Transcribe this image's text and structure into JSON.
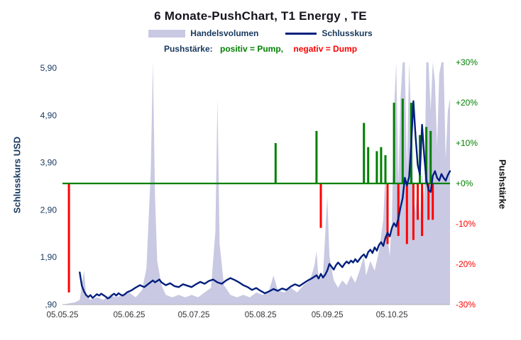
{
  "legend": {
    "push_prefix": "Pushstärke:",
    "pump_label": "positiv = Pump,",
    "dump_label": "negativ = Dump"
  },
  "colors": {
    "volume": "#c9c9e3",
    "close": "#001f7e",
    "pump": "#008000",
    "dump": "#ff0000",
    "axis_text": "#17375e",
    "x_tick_text": "#333333",
    "x_axis_line": "#b0b0b0"
  },
  "chart_data": {
    "type": "combo",
    "title": "6 Monate-PushChart, T1 Energy , TE",
    "x_axis": {
      "tick_labels": [
        "05.05.25",
        "05.06.25",
        "05.07.25",
        "05.08.25",
        "05.09.25",
        "05.10.25"
      ],
      "tick_days": [
        0,
        31,
        61,
        92,
        123,
        153
      ],
      "range_days": [
        0,
        180
      ]
    },
    "left_axis": {
      "title": "Schlusskurs USD",
      "range": [
        0.9,
        6.02
      ],
      "tick_values": [
        5.9,
        4.9,
        3.9,
        2.9,
        1.9,
        0.9
      ],
      "tick_labels": [
        "5,90",
        "4,90",
        "3,90",
        "2,90",
        "1,90",
        ",90"
      ]
    },
    "right_axis": {
      "title": "Pushstärke",
      "range": [
        -30,
        30
      ],
      "tick_values": [
        30,
        20,
        10,
        0,
        -10,
        -20,
        -30
      ],
      "tick_labels": [
        "+30%",
        "+20%",
        "+10%",
        "+0%",
        "-10%",
        "-20%",
        "-30%"
      ]
    },
    "zero_line": {
      "axis": "right",
      "value": 0
    },
    "series": [
      {
        "name": "Handelsvolumen",
        "type": "area",
        "axis": "hidden",
        "unit": "fraction_of_plot_height",
        "points": [
          [
            0,
            0
          ],
          [
            6,
            0.01
          ],
          [
            8,
            0.02
          ],
          [
            10,
            0.14
          ],
          [
            11,
            0.04
          ],
          [
            13,
            0.02
          ],
          [
            16,
            0.03
          ],
          [
            19,
            0.02
          ],
          [
            22,
            0.04
          ],
          [
            25,
            0.03
          ],
          [
            28,
            0.04
          ],
          [
            31,
            0.05
          ],
          [
            34,
            0.03
          ],
          [
            37,
            0.06
          ],
          [
            39,
            0.15
          ],
          [
            41,
            0.55
          ],
          [
            42,
            1.0
          ],
          [
            43,
            0.45
          ],
          [
            44,
            0.18
          ],
          [
            46,
            0.08
          ],
          [
            48,
            0.04
          ],
          [
            51,
            0.03
          ],
          [
            54,
            0.04
          ],
          [
            57,
            0.03
          ],
          [
            60,
            0.04
          ],
          [
            63,
            0.03
          ],
          [
            66,
            0.05
          ],
          [
            69,
            0.07
          ],
          [
            71,
            0.3
          ],
          [
            72,
            0.85
          ],
          [
            73,
            0.25
          ],
          [
            75,
            0.08
          ],
          [
            78,
            0.04
          ],
          [
            81,
            0.03
          ],
          [
            84,
            0.04
          ],
          [
            87,
            0.03
          ],
          [
            90,
            0.05
          ],
          [
            93,
            0.04
          ],
          [
            96,
            0.06
          ],
          [
            98,
            0.12
          ],
          [
            100,
            0.06
          ],
          [
            103,
            0.05
          ],
          [
            106,
            0.07
          ],
          [
            109,
            0.05
          ],
          [
            112,
            0.08
          ],
          [
            115,
            0.1
          ],
          [
            117,
            0.16
          ],
          [
            118,
            0.22
          ],
          [
            119,
            0.1
          ],
          [
            121,
            0.12
          ],
          [
            123,
            0.45
          ],
          [
            124,
            0.2
          ],
          [
            126,
            0.1
          ],
          [
            128,
            0.07
          ],
          [
            130,
            0.1
          ],
          [
            132,
            0.08
          ],
          [
            134,
            0.12
          ],
          [
            136,
            0.09
          ],
          [
            138,
            0.14
          ],
          [
            140,
            0.2
          ],
          [
            141,
            0.12
          ],
          [
            143,
            0.18
          ],
          [
            145,
            0.14
          ],
          [
            147,
            0.22
          ],
          [
            149,
            0.35
          ],
          [
            150,
            0.55
          ],
          [
            151,
            0.28
          ],
          [
            152,
            0.2
          ],
          [
            153,
            0.35
          ],
          [
            154,
            0.8
          ],
          [
            155,
            1.0
          ],
          [
            156,
            0.5
          ],
          [
            157,
            0.85
          ],
          [
            158,
            1.0
          ],
          [
            159,
            1.0
          ],
          [
            160,
            0.55
          ],
          [
            161,
            1.0
          ],
          [
            162,
            0.75
          ],
          [
            163,
            0.45
          ],
          [
            164,
            0.38
          ],
          [
            165,
            0.52
          ],
          [
            166,
            0.35
          ],
          [
            167,
            0.55
          ],
          [
            168,
            0.42
          ],
          [
            169,
            1.0
          ],
          [
            170,
            1.0
          ],
          [
            171,
            0.8
          ],
          [
            172,
            1.0
          ],
          [
            173,
            0.92
          ],
          [
            174,
            0.65
          ],
          [
            175,
            0.95
          ],
          [
            176,
            1.0
          ],
          [
            177,
            1.0
          ],
          [
            178,
            0.6
          ],
          [
            179,
            0.8
          ],
          [
            180,
            0.85
          ]
        ]
      },
      {
        "name": "Schlusskurs",
        "type": "line",
        "axis": "left",
        "points": [
          [
            8,
            1.58
          ],
          [
            9,
            1.3
          ],
          [
            10,
            1.18
          ],
          [
            11,
            1.1
          ],
          [
            12,
            1.06
          ],
          [
            13,
            1.1
          ],
          [
            14,
            1.04
          ],
          [
            15,
            1.08
          ],
          [
            16,
            1.12
          ],
          [
            17,
            1.09
          ],
          [
            18,
            1.13
          ],
          [
            19,
            1.1
          ],
          [
            20,
            1.07
          ],
          [
            21,
            1.03
          ],
          [
            22,
            1.05
          ],
          [
            23,
            1.1
          ],
          [
            24,
            1.13
          ],
          [
            25,
            1.09
          ],
          [
            26,
            1.14
          ],
          [
            27,
            1.11
          ],
          [
            28,
            1.09
          ],
          [
            29,
            1.12
          ],
          [
            30,
            1.16
          ],
          [
            32,
            1.2
          ],
          [
            34,
            1.26
          ],
          [
            36,
            1.31
          ],
          [
            38,
            1.27
          ],
          [
            40,
            1.34
          ],
          [
            42,
            1.41
          ],
          [
            43,
            1.37
          ],
          [
            45,
            1.43
          ],
          [
            46,
            1.37
          ],
          [
            48,
            1.31
          ],
          [
            50,
            1.35
          ],
          [
            52,
            1.29
          ],
          [
            54,
            1.27
          ],
          [
            56,
            1.33
          ],
          [
            58,
            1.3
          ],
          [
            60,
            1.27
          ],
          [
            62,
            1.33
          ],
          [
            64,
            1.38
          ],
          [
            66,
            1.34
          ],
          [
            68,
            1.4
          ],
          [
            70,
            1.43
          ],
          [
            72,
            1.37
          ],
          [
            74,
            1.34
          ],
          [
            76,
            1.41
          ],
          [
            78,
            1.46
          ],
          [
            80,
            1.42
          ],
          [
            82,
            1.37
          ],
          [
            84,
            1.31
          ],
          [
            86,
            1.27
          ],
          [
            88,
            1.21
          ],
          [
            90,
            1.25
          ],
          [
            92,
            1.19
          ],
          [
            94,
            1.14
          ],
          [
            96,
            1.18
          ],
          [
            98,
            1.23
          ],
          [
            100,
            1.19
          ],
          [
            102,
            1.24
          ],
          [
            104,
            1.21
          ],
          [
            106,
            1.28
          ],
          [
            108,
            1.33
          ],
          [
            110,
            1.29
          ],
          [
            112,
            1.35
          ],
          [
            114,
            1.41
          ],
          [
            116,
            1.46
          ],
          [
            118,
            1.52
          ],
          [
            119,
            1.45
          ],
          [
            120,
            1.55
          ],
          [
            121,
            1.47
          ],
          [
            122,
            1.53
          ],
          [
            123,
            1.62
          ],
          [
            124,
            1.76
          ],
          [
            125,
            1.7
          ],
          [
            126,
            1.64
          ],
          [
            127,
            1.73
          ],
          [
            128,
            1.79
          ],
          [
            129,
            1.74
          ],
          [
            130,
            1.69
          ],
          [
            131,
            1.76
          ],
          [
            132,
            1.81
          ],
          [
            133,
            1.77
          ],
          [
            134,
            1.83
          ],
          [
            135,
            1.79
          ],
          [
            136,
            1.86
          ],
          [
            137,
            1.8
          ],
          [
            138,
            1.86
          ],
          [
            139,
            1.92
          ],
          [
            140,
            1.96
          ],
          [
            141,
            1.89
          ],
          [
            142,
            2.01
          ],
          [
            143,
            2.06
          ],
          [
            144,
            1.99
          ],
          [
            145,
            2.11
          ],
          [
            146,
            2.04
          ],
          [
            147,
            2.16
          ],
          [
            148,
            2.22
          ],
          [
            149,
            2.14
          ],
          [
            150,
            2.31
          ],
          [
            151,
            2.42
          ],
          [
            152,
            2.34
          ],
          [
            153,
            2.52
          ],
          [
            154,
            2.62
          ],
          [
            155,
            2.55
          ],
          [
            156,
            2.72
          ],
          [
            157,
            2.95
          ],
          [
            158,
            3.15
          ],
          [
            159,
            3.58
          ],
          [
            160,
            3.42
          ],
          [
            161,
            3.6
          ],
          [
            162,
            4.3
          ],
          [
            163,
            5.2
          ],
          [
            164,
            4.45
          ],
          [
            165,
            3.85
          ],
          [
            166,
            3.65
          ],
          [
            167,
            4.7
          ],
          [
            168,
            4.05
          ],
          [
            169,
            3.55
          ],
          [
            170,
            3.32
          ],
          [
            171,
            3.28
          ],
          [
            172,
            3.62
          ],
          [
            173,
            3.72
          ],
          [
            174,
            3.58
          ],
          [
            175,
            3.52
          ],
          [
            176,
            3.66
          ],
          [
            177,
            3.58
          ],
          [
            178,
            3.52
          ],
          [
            179,
            3.64
          ],
          [
            180,
            3.72
          ]
        ]
      },
      {
        "name": "Pushstärke",
        "type": "bar",
        "axis": "right",
        "unit": "percent",
        "points": [
          [
            3,
            -27
          ],
          [
            99,
            10
          ],
          [
            118,
            13
          ],
          [
            120,
            -11
          ],
          [
            140,
            15
          ],
          [
            142,
            9
          ],
          [
            146,
            8
          ],
          [
            148,
            9
          ],
          [
            150,
            7
          ],
          [
            151,
            -15
          ],
          [
            154,
            20
          ],
          [
            156,
            -13
          ],
          [
            158,
            21
          ],
          [
            160,
            -15
          ],
          [
            162,
            20
          ],
          [
            163,
            -14
          ],
          [
            165,
            -9
          ],
          [
            166,
            12
          ],
          [
            167,
            -13
          ],
          [
            169,
            14
          ],
          [
            170,
            -9
          ],
          [
            171,
            13
          ],
          [
            172,
            -9
          ]
        ]
      }
    ]
  }
}
